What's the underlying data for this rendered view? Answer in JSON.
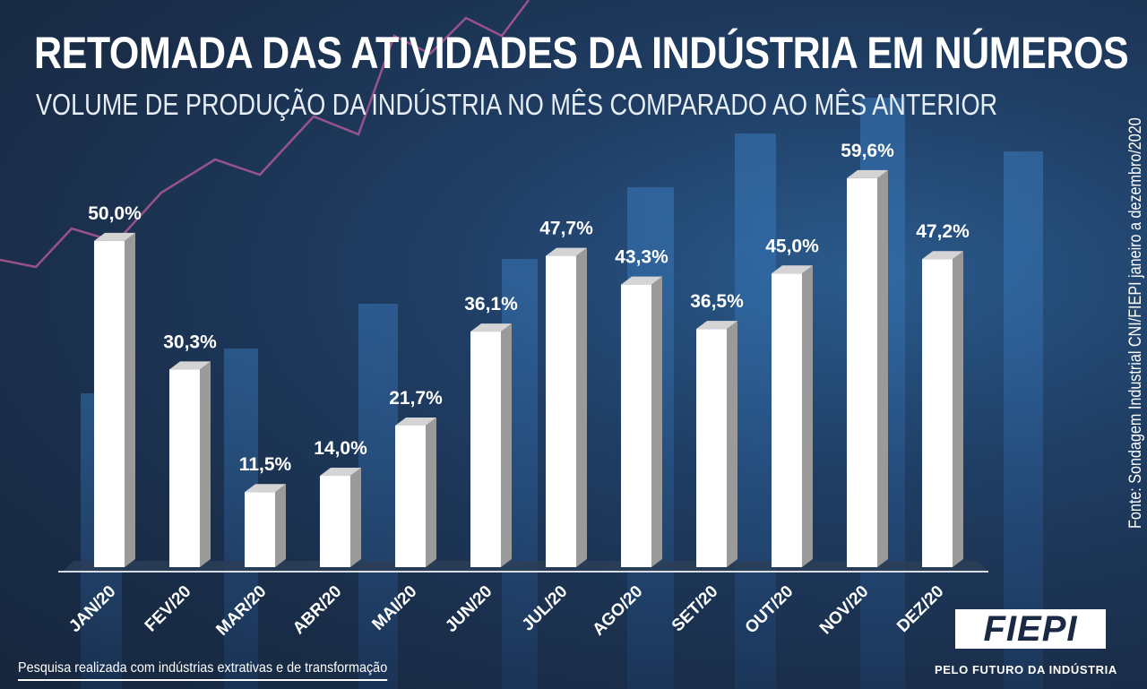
{
  "header": {
    "title": "RETOMADA DAS ATIVIDADES DA INDÚSTRIA EM NÚMEROS",
    "subtitle": "VOLUME DE PRODUÇÃO DA INDÚSTRIA NO MÊS COMPARADO AO MÊS ANTERIOR"
  },
  "source": "Fonte: Sondagem Industrial CNI/FIEPI janeiro a dezembro/2020",
  "footnote": "Pesquisa realizada com indústrias extrativas e de transformação",
  "logo": {
    "text": "FIEPI",
    "tagline": "PELO FUTURO DA INDÚSTRIA"
  },
  "colors": {
    "bar": "#ffffff",
    "bar_side": "#9a9a9a",
    "background": "#1f3d63",
    "text": "#ffffff"
  },
  "chart_data": {
    "type": "bar",
    "title": "RETOMADA DAS ATIVIDADES DA INDÚSTRIA EM NÚMEROS",
    "subtitle": "VOLUME DE PRODUÇÃO DA INDÚSTRIA NO MÊS COMPARADO AO MÊS ANTERIOR",
    "categories": [
      "JAN/20",
      "FEV/20",
      "MAR/20",
      "ABR/20",
      "MAI/20",
      "JUN/20",
      "JUL/20",
      "AGO/20",
      "SET/20",
      "OUT/20",
      "NOV/20",
      "DEZ/20"
    ],
    "values": [
      50.0,
      30.3,
      11.5,
      14.0,
      21.7,
      36.1,
      47.7,
      43.3,
      36.5,
      45.0,
      59.6,
      47.2
    ],
    "value_labels": [
      "50,0%",
      "30,3%",
      "11,5%",
      "14,0%",
      "21,7%",
      "36,1%",
      "47,7%",
      "43,3%",
      "36,5%",
      "45,0%",
      "59,6%",
      "47,2%"
    ],
    "unit": "%",
    "ylim": [
      0,
      60
    ],
    "grid": false,
    "legend": "none"
  }
}
